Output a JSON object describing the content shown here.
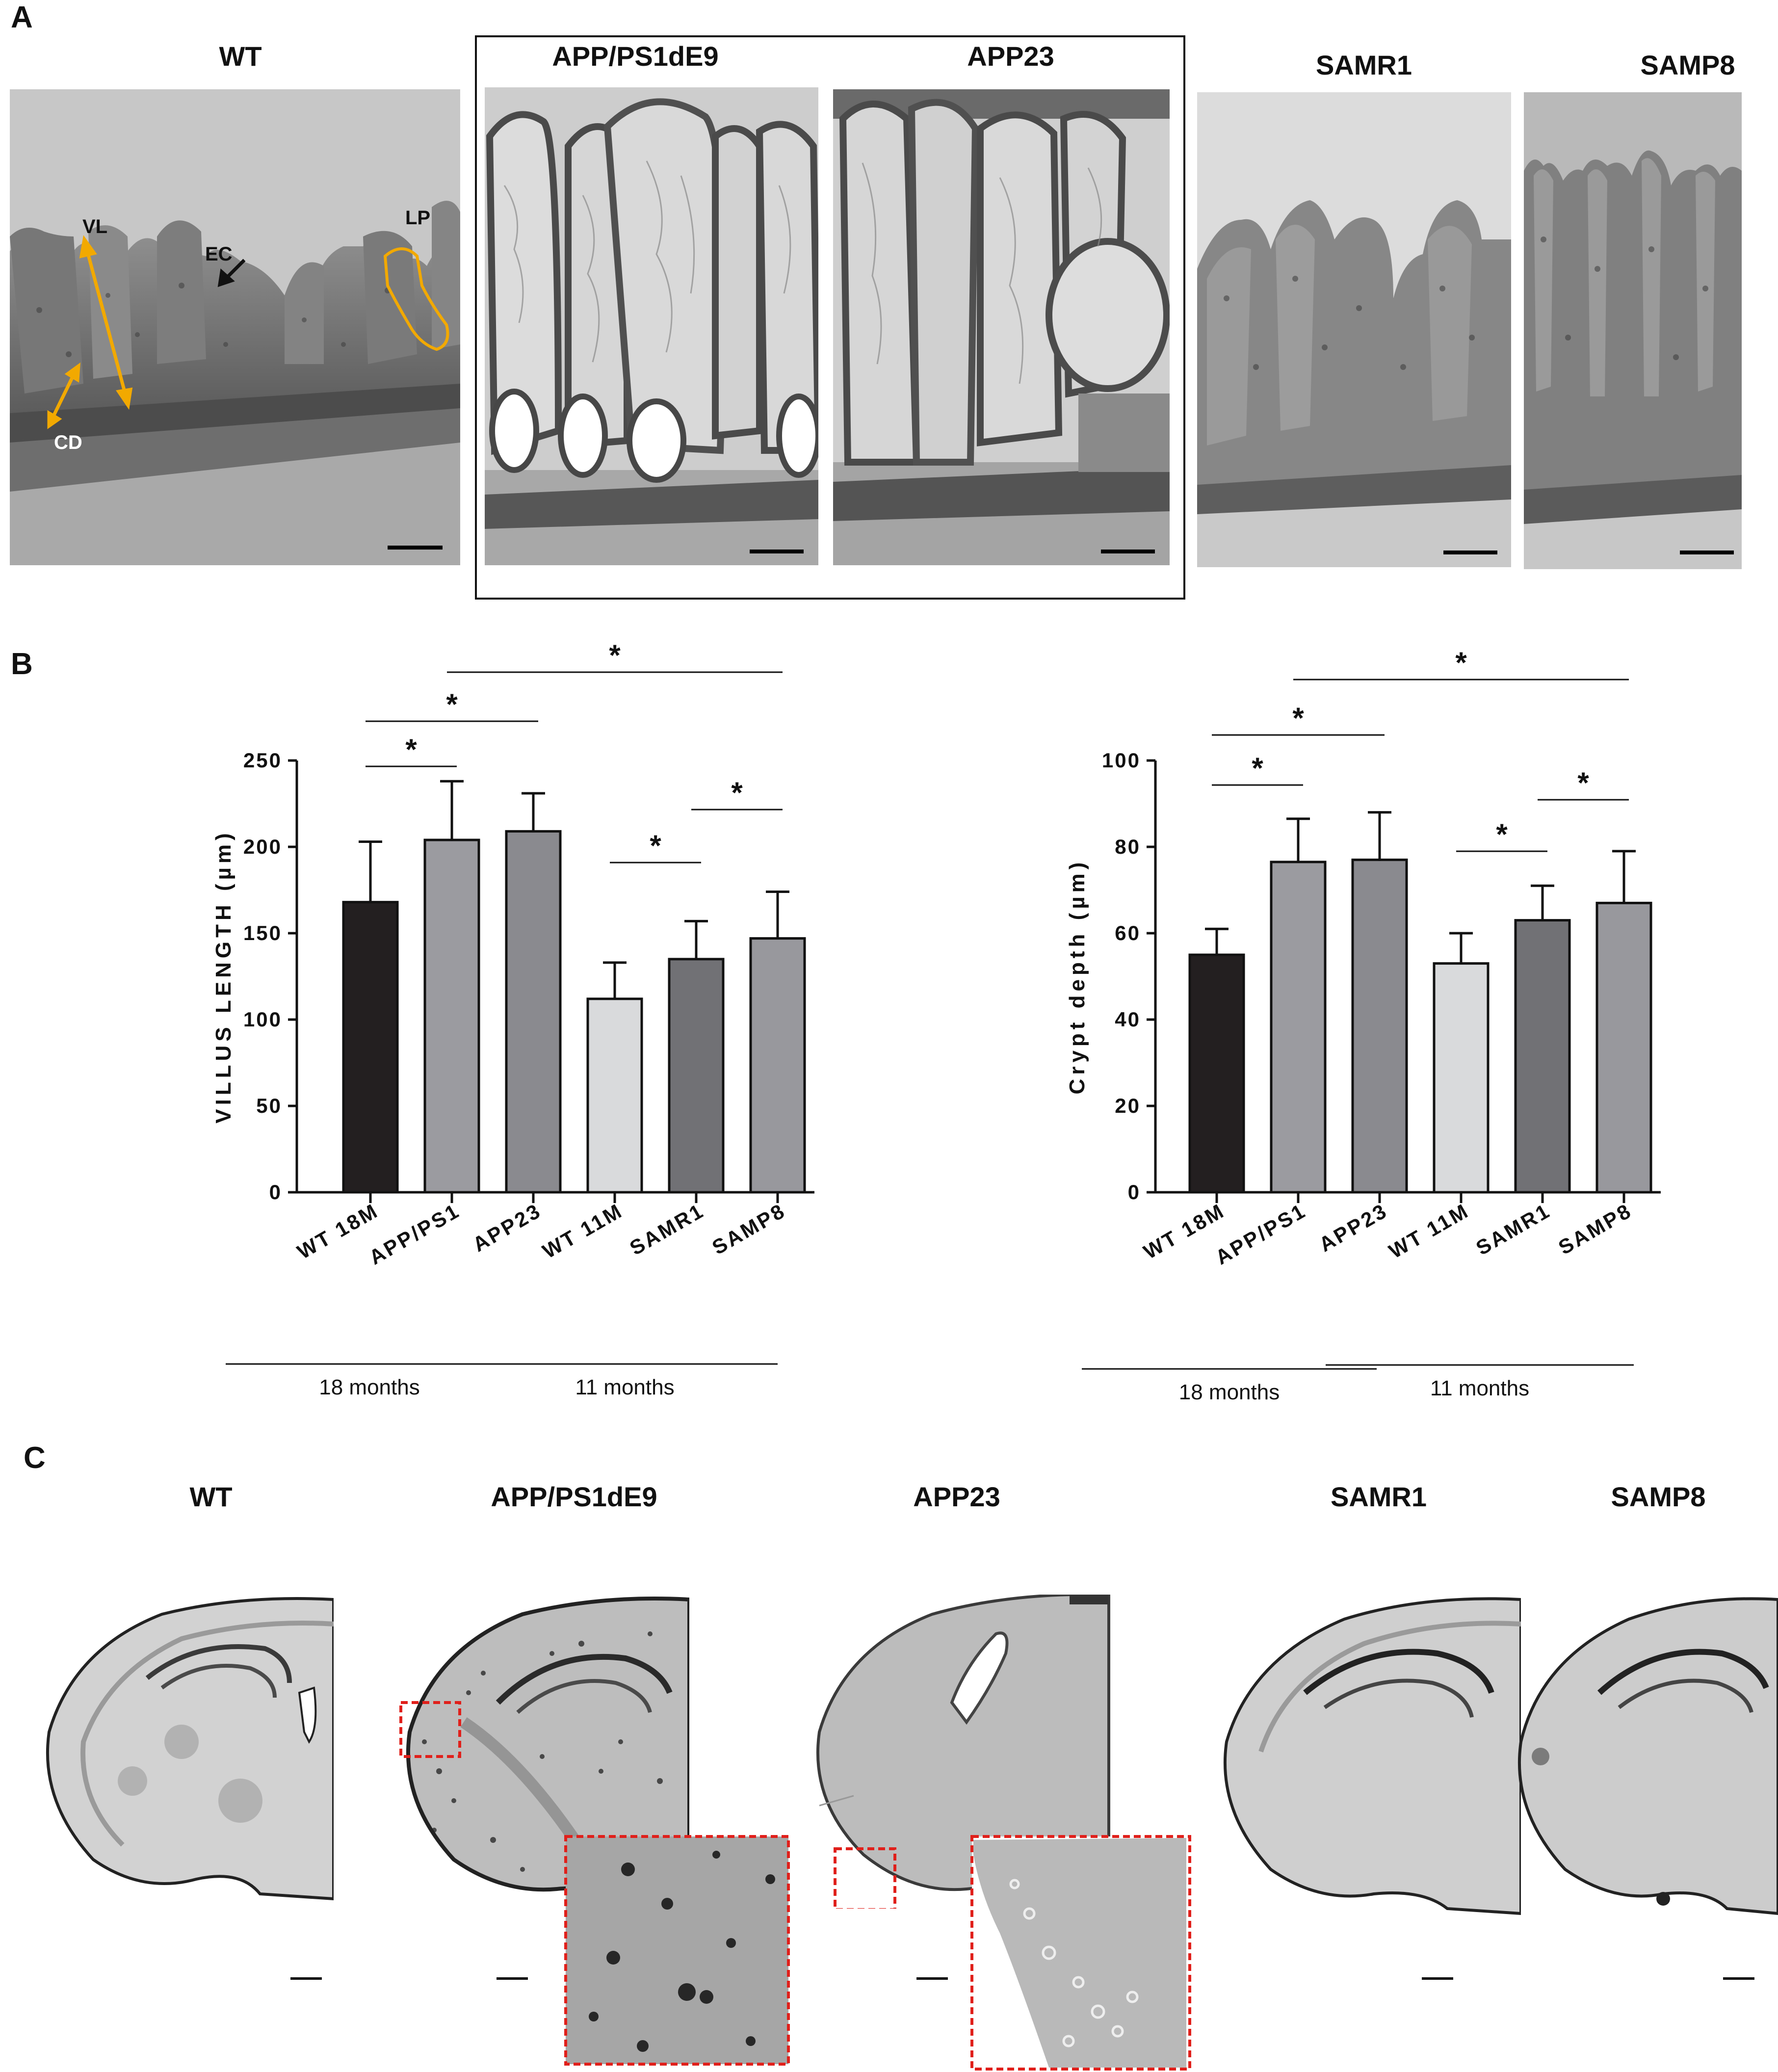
{
  "panels": {
    "A": {
      "letter": "A",
      "titles": [
        "WT",
        "APP/PS1dE9",
        "APP23",
        "SAMR1",
        "SAMP8"
      ],
      "annotations": {
        "vl": "VL",
        "ec": "EC",
        "lp": "LP",
        "cd": "CD"
      },
      "annotation_color": "#F2A900"
    },
    "B": {
      "letter": "B"
    },
    "C": {
      "letter": "C",
      "titles": [
        "WT",
        "APP/PS1dE9",
        "APP23",
        "SAMR1",
        "SAMP8"
      ],
      "inset_color": "#E0201B"
    }
  },
  "chart_data": [
    {
      "type": "bar",
      "categories": [
        "WT 18M",
        "APP/PS1",
        "APP23",
        "WT 11M",
        "SAMR1",
        "SAMP8"
      ],
      "values": [
        168,
        204,
        209,
        112,
        135,
        147
      ],
      "errors": [
        35,
        34,
        22,
        21,
        22,
        27
      ],
      "bar_colors": [
        "#231F20",
        "#9B9BA0",
        "#8A8A8F",
        "#D9DADC",
        "#717175",
        "#98989D"
      ],
      "ylabel": "VILLUS LENGTH (µm)",
      "ylim": [
        0,
        250
      ],
      "yticks": [
        "0",
        "50",
        "100",
        "150",
        "200",
        "250"
      ],
      "significance": [
        {
          "from": 0,
          "to": 1,
          "label": "*"
        },
        {
          "from": 0,
          "to": 2,
          "label": "*"
        },
        {
          "from": 1,
          "to": 5,
          "label": "*"
        },
        {
          "from": 3,
          "to": 4,
          "label": "*"
        },
        {
          "from": 4,
          "to": 5,
          "label": "*"
        }
      ],
      "groups": [
        {
          "label": "18 months",
          "from": 0,
          "to": 1
        },
        {
          "label": "11 months",
          "from": 2,
          "to": 5
        }
      ]
    },
    {
      "type": "bar",
      "categories": [
        "WT 18M",
        "APP/PS1",
        "APP23",
        "WT 11M",
        "SAMR1",
        "SAMP8"
      ],
      "values": [
        55,
        76.5,
        77,
        53,
        63,
        67
      ],
      "errors": [
        6,
        10,
        11,
        7,
        8,
        12
      ],
      "bar_colors": [
        "#231F20",
        "#9B9BA0",
        "#8A8A8F",
        "#D9DADC",
        "#717175",
        "#98989D"
      ],
      "ylabel": "Crypt depth (µm)",
      "ylim": [
        0,
        100
      ],
      "yticks": [
        "0",
        "20",
        "40",
        "60",
        "80",
        "100"
      ],
      "significance": [
        {
          "from": 0,
          "to": 1,
          "label": "*"
        },
        {
          "from": 0,
          "to": 2,
          "label": "*"
        },
        {
          "from": 1,
          "to": 5,
          "label": "*"
        },
        {
          "from": 3,
          "to": 4,
          "label": "*"
        },
        {
          "from": 4,
          "to": 5,
          "label": "*"
        }
      ],
      "groups": [
        {
          "label": "18 months",
          "from": 0,
          "to": 1
        },
        {
          "label": "11 months",
          "from": 2,
          "to": 5
        }
      ]
    }
  ]
}
